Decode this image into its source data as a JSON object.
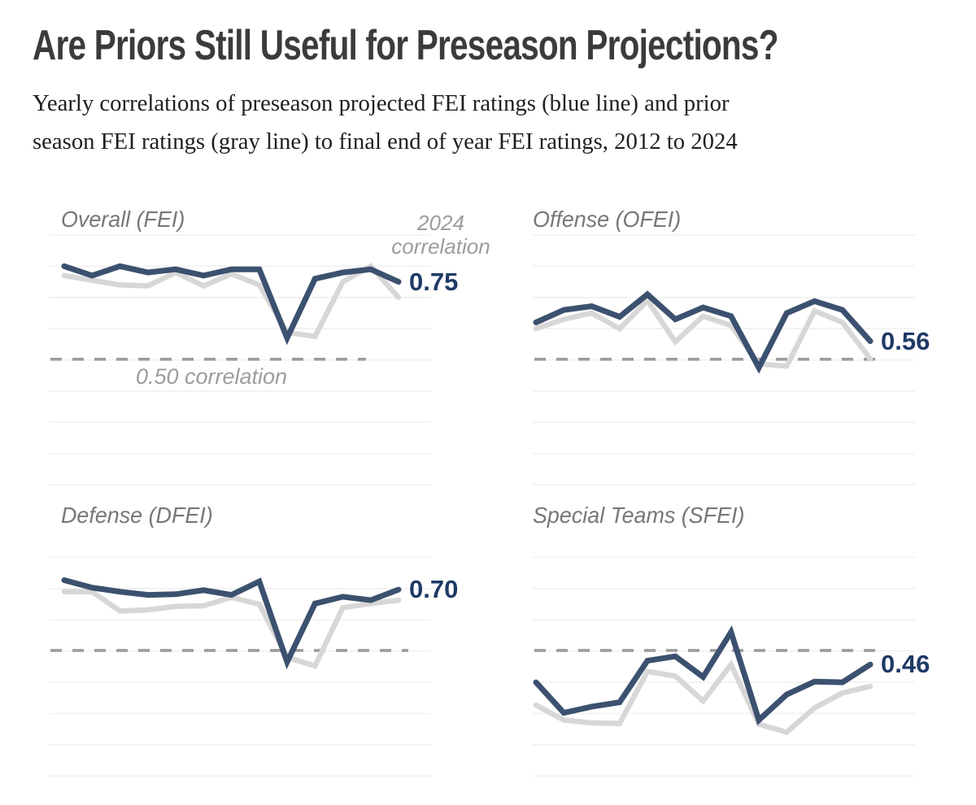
{
  "header": {
    "title": "Are Priors Still Useful for Preseason Projections?",
    "subtitle_line1": "Yearly correlations of preseason projected FEI ratings (blue line) and prior",
    "subtitle_line2": "season FEI ratings (gray line) to final end of year FEI ratings, 2012 to 2024"
  },
  "annotations": {
    "end_note_line1": "2024",
    "end_note_line2": "correlation",
    "reference_note": "0.50 correlation"
  },
  "colors": {
    "preseason_line": "#3C516F",
    "prior_line": "#D7D7D7",
    "value_label": "#1E3A66",
    "annotation_text": "#9B9DA0",
    "panel_title_text": "#76777A",
    "gridline": "#F2F2F2",
    "dashed_line": "#9C9C9C",
    "title_text": "#3B3B3B",
    "subtitle_text": "#1F1F1F",
    "background": "#FFFFFF"
  },
  "chart_data": {
    "type": "line",
    "x": [
      2012,
      2013,
      2014,
      2015,
      2016,
      2017,
      2018,
      2019,
      2020,
      2021,
      2022,
      2023,
      2024
    ],
    "x_range": [
      2012,
      2024
    ],
    "reference_line_value": 0.5,
    "y_gridline_step": 0.1,
    "grid": "horizontal gridlines only, axes hidden",
    "legend": "blue = preseason projected FEI rating, gray = prior season FEI rating",
    "panels": [
      {
        "title": "Overall (FEI)",
        "end_label": "0.75",
        "series": [
          {
            "name": "preseason projection",
            "color_key": "preseason_line",
            "values": [
              0.8,
              0.77,
              0.8,
              0.78,
              0.79,
              0.77,
              0.79,
              0.79,
              0.57,
              0.76,
              0.78,
              0.79,
              0.75
            ]
          },
          {
            "name": "prior season rating",
            "color_key": "prior_line",
            "values": [
              0.77,
              0.755,
              0.74,
              0.737,
              0.78,
              0.737,
              0.775,
              0.74,
              0.588,
              0.575,
              0.75,
              0.8,
              0.7
            ]
          }
        ]
      },
      {
        "title": "Offense (OFEI)",
        "end_label": "0.56",
        "series": [
          {
            "name": "preseason projection",
            "color_key": "preseason_line",
            "values": [
              0.62,
              0.66,
              0.672,
              0.638,
              0.71,
              0.63,
              0.668,
              0.64,
              0.475,
              0.65,
              0.688,
              0.66,
              0.56
            ]
          },
          {
            "name": "prior season rating",
            "color_key": "prior_line",
            "values": [
              0.6,
              0.63,
              0.65,
              0.6,
              0.69,
              0.558,
              0.64,
              0.61,
              0.487,
              0.48,
              0.657,
              0.62,
              0.503
            ]
          }
        ]
      },
      {
        "title": "Defense (DFEI)",
        "end_label": "0.70",
        "series": [
          {
            "name": "preseason projection",
            "color_key": "preseason_line",
            "values": [
              0.727,
              0.703,
              0.69,
              0.68,
              0.682,
              0.695,
              0.68,
              0.723,
              0.465,
              0.652,
              0.674,
              0.663,
              0.697
            ]
          },
          {
            "name": "prior season rating",
            "color_key": "prior_line",
            "values": [
              0.69,
              0.69,
              0.628,
              0.632,
              0.643,
              0.645,
              0.672,
              0.65,
              0.48,
              0.452,
              0.639,
              0.652,
              0.663
            ]
          }
        ]
      },
      {
        "title": "Special Teams (SFEI)",
        "end_label": "0.46",
        "series": [
          {
            "name": "preseason projection",
            "color_key": "preseason_line",
            "values": [
              0.4,
              0.302,
              0.322,
              0.336,
              0.469,
              0.483,
              0.417,
              0.561,
              0.279,
              0.361,
              0.402,
              0.4,
              0.457
            ]
          },
          {
            "name": "prior season rating",
            "color_key": "prior_line",
            "values": [
              0.327,
              0.279,
              0.27,
              0.268,
              0.435,
              0.42,
              0.34,
              0.457,
              0.266,
              0.24,
              0.318,
              0.366,
              0.387
            ]
          }
        ]
      }
    ]
  }
}
